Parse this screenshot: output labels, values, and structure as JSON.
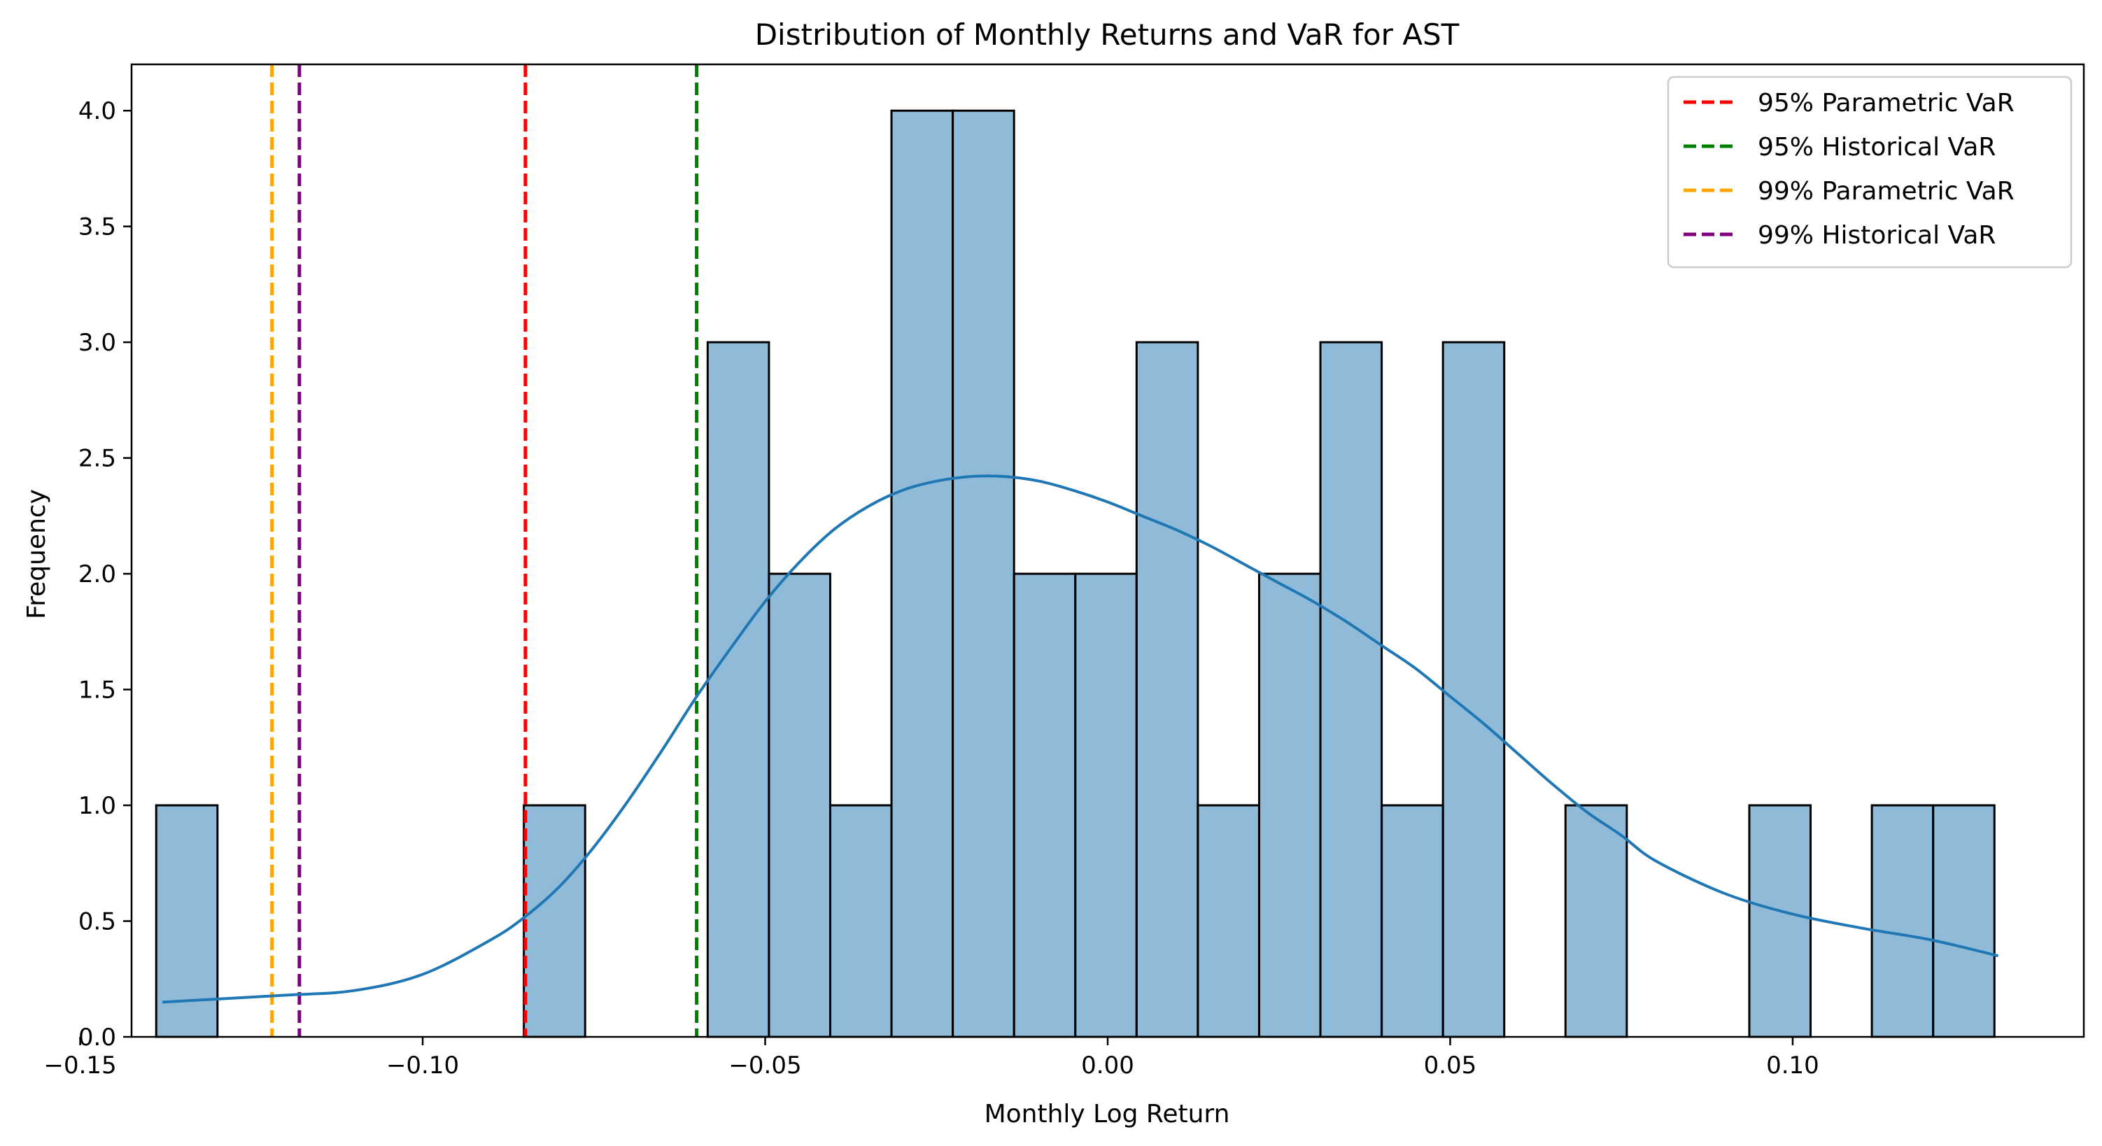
{
  "chart_data": {
    "type": "histogram",
    "title": "Distribution of Monthly Returns and VaR for AST",
    "xlabel": "Monthly Log Return",
    "ylabel": "Frequency",
    "xlim": [
      -0.1425,
      0.1425
    ],
    "ylim": [
      0,
      4.2
    ],
    "xticks": [
      -0.15,
      -0.1,
      -0.05,
      0.0,
      0.05,
      0.1
    ],
    "xtick_labels": [
      "−0.15",
      "−0.10",
      "−0.05",
      "0.00",
      "0.05",
      "0.10"
    ],
    "yticks": [
      0,
      0.5,
      1.0,
      1.5,
      2.0,
      2.5,
      3.0,
      3.5,
      4.0
    ],
    "ytick_labels": [
      "0.0",
      "0.5",
      "1.0",
      "1.5",
      "2.0",
      "2.5",
      "3.0",
      "3.5",
      "4.0"
    ],
    "grid": false,
    "bins": {
      "start": -0.1389,
      "width": 0.008945,
      "counts": [
        1,
        0,
        0,
        0,
        0,
        0,
        1,
        0,
        0,
        3,
        2,
        1,
        4,
        4,
        2,
        2,
        3,
        1,
        2,
        3,
        1,
        3,
        0,
        1,
        0,
        0,
        1,
        0,
        1,
        1
      ],
      "color": "#1f77b4"
    },
    "kde": {
      "x": [
        -0.138,
        -0.12,
        -0.11,
        -0.1,
        -0.09,
        -0.085,
        -0.08,
        -0.075,
        -0.07,
        -0.065,
        -0.06,
        -0.055,
        -0.05,
        -0.045,
        -0.04,
        -0.035,
        -0.03,
        -0.025,
        -0.02,
        -0.015,
        -0.01,
        -0.005,
        0.0,
        0.005,
        0.01,
        0.015,
        0.02,
        0.025,
        0.03,
        0.035,
        0.04,
        0.045,
        0.05,
        0.055,
        0.06,
        0.065,
        0.07,
        0.075,
        0.08,
        0.09,
        0.1,
        0.11,
        0.12,
        0.13
      ],
      "y": [
        0.15,
        0.18,
        0.2,
        0.27,
        0.42,
        0.52,
        0.65,
        0.82,
        1.02,
        1.24,
        1.47,
        1.68,
        1.88,
        2.05,
        2.19,
        2.29,
        2.36,
        2.4,
        2.42,
        2.42,
        2.4,
        2.36,
        2.31,
        2.25,
        2.19,
        2.12,
        2.04,
        1.96,
        1.88,
        1.79,
        1.69,
        1.59,
        1.47,
        1.35,
        1.22,
        1.09,
        0.97,
        0.87,
        0.76,
        0.62,
        0.53,
        0.47,
        0.42,
        0.35
      ],
      "color": "#1f77b4"
    },
    "var_lines": [
      {
        "name": "95% Parametric VaR",
        "x": -0.085,
        "color": "#ff0000"
      },
      {
        "name": "95% Historical VaR",
        "x": -0.06,
        "color": "#008000"
      },
      {
        "name": "99% Parametric VaR",
        "x": -0.122,
        "color": "#ffa500"
      },
      {
        "name": "99% Historical VaR",
        "x": -0.118,
        "color": "#800080"
      }
    ],
    "legend_position": "top-right"
  }
}
